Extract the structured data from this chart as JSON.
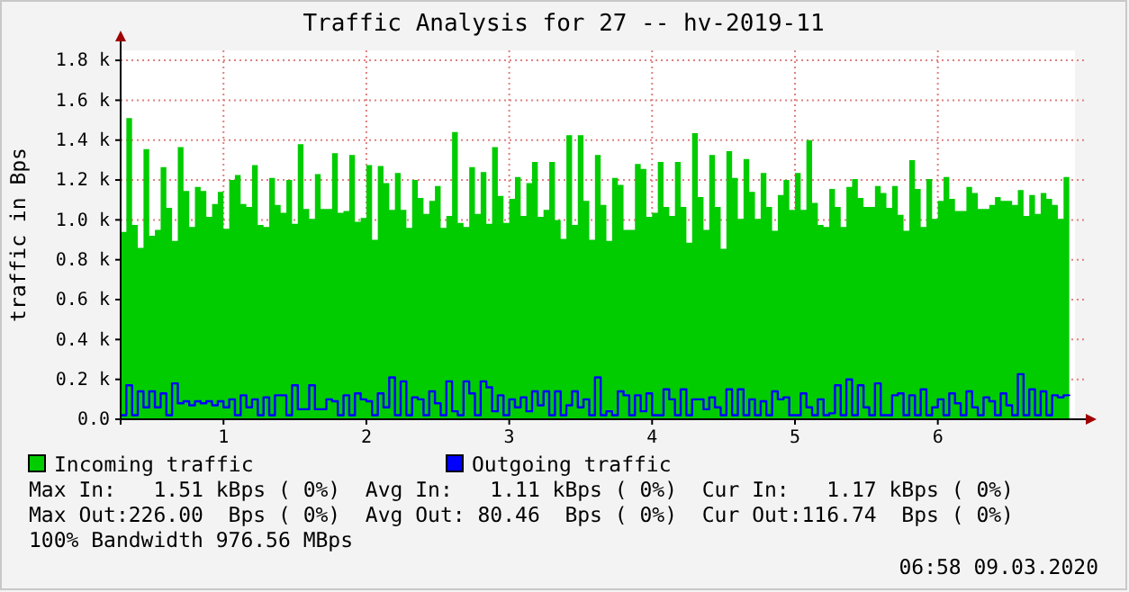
{
  "chart_data": {
    "type": "area",
    "title": "Traffic Analysis for 27 -- hv-2019-11",
    "ylabel": "traffic in Bps",
    "x": [
      0.28,
      0.32,
      0.36,
      0.4,
      0.44,
      0.48,
      0.52,
      0.56,
      0.6,
      0.64,
      0.68,
      0.72,
      0.76,
      0.8,
      0.84,
      0.88,
      0.92,
      0.96,
      1,
      1.04,
      1.08,
      1.12,
      1.16,
      1.2,
      1.24,
      1.28,
      1.32,
      1.36,
      1.4,
      1.44,
      1.48,
      1.52,
      1.56,
      1.6,
      1.64,
      1.68,
      1.72,
      1.76,
      1.8,
      1.84,
      1.88,
      1.92,
      1.96,
      2,
      2.04,
      2.08,
      2.12,
      2.16,
      2.2,
      2.24,
      2.28,
      2.32,
      2.36,
      2.4,
      2.44,
      2.48,
      2.52,
      2.56,
      2.6,
      2.64,
      2.68,
      2.72,
      2.76,
      2.8,
      2.84,
      2.88,
      2.92,
      2.96,
      3,
      3.04,
      3.08,
      3.12,
      3.16,
      3.2,
      3.24,
      3.28,
      3.32,
      3.36,
      3.4,
      3.44,
      3.48,
      3.52,
      3.56,
      3.6,
      3.64,
      3.68,
      3.72,
      3.76,
      3.8,
      3.84,
      3.88,
      3.92,
      3.96,
      4,
      4.04,
      4.08,
      4.12,
      4.16,
      4.2,
      4.24,
      4.28,
      4.32,
      4.36,
      4.4,
      4.44,
      4.48,
      4.52,
      4.56,
      4.6,
      4.64,
      4.68,
      4.72,
      4.76,
      4.8,
      4.84,
      4.88,
      4.92,
      4.96,
      5,
      5.04,
      5.08,
      5.12,
      5.16,
      5.2,
      5.24,
      5.28,
      5.32,
      5.36,
      5.4,
      5.44,
      5.48,
      5.52,
      5.56,
      5.6,
      5.64,
      5.68,
      5.72,
      5.76,
      5.8,
      5.84,
      5.88,
      5.92,
      5.96,
      6,
      6.04,
      6.08,
      6.12,
      6.16,
      6.2,
      6.24,
      6.28,
      6.32,
      6.36,
      6.4,
      6.44,
      6.48,
      6.52,
      6.56,
      6.6,
      6.64,
      6.68,
      6.72,
      6.76,
      6.8,
      6.84,
      6.88,
      6.92
    ],
    "series": [
      {
        "name": "Incoming traffic",
        "color": "#00cc00",
        "values": [
          940,
          1510,
          975,
          860,
          1355,
          920,
          950,
          1265,
          1060,
          895,
          1365,
          1145,
          965,
          1165,
          1145,
          1015,
          1080,
          1140,
          955,
          1200,
          1225,
          1080,
          1065,
          1275,
          975,
          965,
          1210,
          1075,
          1035,
          1200,
          980,
          1380,
          1055,
          1005,
          1230,
          1055,
          1055,
          1335,
          1035,
          1045,
          1325,
          990,
          1010,
          1275,
          900,
          1270,
          1185,
          1050,
          1235,
          1050,
          960,
          1200,
          1110,
          1030,
          1095,
          1170,
          960,
          1020,
          1440,
          985,
          965,
          1265,
          1030,
          1240,
          980,
          1365,
          1120,
          985,
          1105,
          1215,
          1020,
          1185,
          1290,
          1015,
          1050,
          1290,
          1000,
          905,
          1425,
          975,
          1425,
          1095,
          900,
          1325,
          1075,
          895,
          1210,
          1175,
          950,
          950,
          1280,
          1255,
          1015,
          1035,
          1290,
          1065,
          1020,
          1290,
          1065,
          885,
          1435,
          1115,
          950,
          1325,
          1065,
          855,
          1345,
          1210,
          1005,
          1305,
          1140,
          1005,
          1235,
          1065,
          945,
          1125,
          1200,
          1050,
          1235,
          1050,
          1400,
          1085,
          975,
          965,
          1155,
          1065,
          965,
          1165,
          1205,
          1110,
          1065,
          1065,
          1170,
          1135,
          1060,
          1170,
          1025,
          945,
          1300,
          1155,
          965,
          1205,
          1005,
          1095,
          1215,
          1105,
          1045,
          1045,
          1165,
          1135,
          1055,
          1055,
          1075,
          1115,
          1095,
          1095,
          1075,
          1150,
          1020,
          1125,
          1030,
          1135,
          1105,
          1075,
          1005,
          1215,
          1175
        ]
      },
      {
        "name": "Outgoing traffic",
        "type": "step",
        "color": "#0000ff",
        "values": [
          20,
          170,
          20,
          140,
          60,
          140,
          60,
          130,
          20,
          180,
          80,
          90,
          70,
          90,
          80,
          90,
          70,
          90,
          60,
          100,
          20,
          120,
          60,
          100,
          20,
          110,
          20,
          120,
          120,
          20,
          170,
          50,
          50,
          170,
          50,
          50,
          100,
          90,
          20,
          120,
          20,
          130,
          100,
          90,
          20,
          130,
          60,
          210,
          20,
          190,
          20,
          110,
          100,
          20,
          140,
          80,
          20,
          190,
          40,
          20,
          190,
          130,
          20,
          190,
          160,
          40,
          120,
          20,
          100,
          60,
          110,
          40,
          140,
          70,
          140,
          20,
          140,
          20,
          70,
          140,
          60,
          100,
          20,
          210,
          20,
          40,
          20,
          140,
          120,
          20,
          120,
          40,
          130,
          20,
          20,
          150,
          100,
          20,
          150,
          20,
          100,
          100,
          50,
          110,
          60,
          20,
          150,
          20,
          150,
          20,
          100,
          20,
          90,
          20,
          140,
          100,
          110,
          20,
          20,
          130,
          60,
          20,
          100,
          20,
          30,
          170,
          20,
          200,
          20,
          170,
          60,
          20,
          180,
          20,
          20,
          120,
          130,
          20,
          120,
          20,
          150,
          20,
          60,
          100,
          20,
          130,
          80,
          20,
          140,
          60,
          20,
          110,
          90,
          20,
          130,
          70,
          20,
          226,
          20,
          150,
          20,
          140,
          20,
          120,
          110,
          120,
          117
        ]
      }
    ],
    "xlim": [
      0.28,
      6.96
    ],
    "xticks": [
      1,
      2,
      3,
      4,
      5,
      6
    ],
    "ylim": [
      0,
      1850
    ],
    "yticks": [
      {
        "value": 0,
        "label": "0.0"
      },
      {
        "value": 200,
        "label": "0.2 k"
      },
      {
        "value": 400,
        "label": "0.4 k"
      },
      {
        "value": 600,
        "label": "0.6 k"
      },
      {
        "value": 800,
        "label": "0.8 k"
      },
      {
        "value": 1000,
        "label": "1.0 k"
      },
      {
        "value": 1200,
        "label": "1.2 k"
      },
      {
        "value": 1400,
        "label": "1.4 k"
      },
      {
        "value": 1600,
        "label": "1.6 k"
      },
      {
        "value": 1800,
        "label": "1.8 k"
      }
    ],
    "grid": true,
    "legend": "bottom left",
    "annotations": [
      "Max In:   1.51 kBps ( 0%)  Avg In:   1.11 kBps ( 0%)  Cur In:   1.17 kBps ( 0%)",
      "Max Out:226.00  Bps ( 0%)  Avg Out: 80.46  Bps ( 0%)  Cur Out:116.74  Bps ( 0%)",
      "100% Bandwidth 976.56 MBps",
      "06:58 09.03.2020"
    ]
  }
}
